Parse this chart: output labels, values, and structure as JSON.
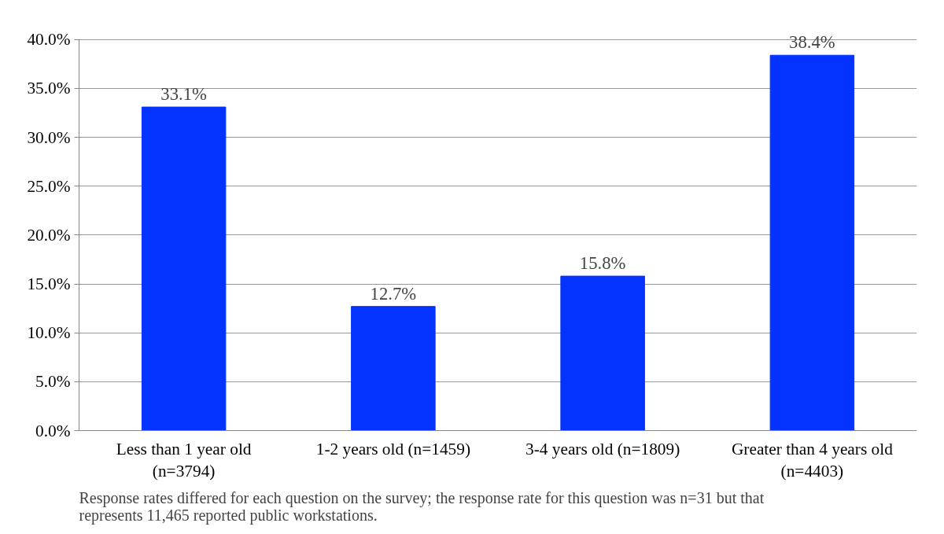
{
  "chart_data": {
    "type": "bar",
    "categories": [
      "Less than 1 year old (n=3794)",
      "1-2 years old (n=1459)",
      "3-4 years old (n=1809)",
      "Greater than 4 years old (n=4403)"
    ],
    "values": [
      33.1,
      12.7,
      15.8,
      38.4
    ],
    "value_labels": [
      "33.1%",
      "12.7%",
      "15.8%",
      "38.4%"
    ],
    "color": "#0433ff",
    "ylim": [
      0,
      40
    ],
    "yticks": [
      {
        "value": 0,
        "label": "0.0%"
      },
      {
        "value": 5,
        "label": "5.0%"
      },
      {
        "value": 10,
        "label": "10.0%"
      },
      {
        "value": 15,
        "label": "15.0%"
      },
      {
        "value": 20,
        "label": "20.0%"
      },
      {
        "value": 25,
        "label": "25.0%"
      },
      {
        "value": 30,
        "label": "30.0%"
      },
      {
        "value": 35,
        "label": "35.0%"
      },
      {
        "value": 40,
        "label": "40.0%"
      }
    ],
    "grid": "y",
    "annotations": [
      "Response rates differed for each question on the survey; the response rate for this question was n=31 but that represents 11,465 reported public workstations."
    ]
  }
}
